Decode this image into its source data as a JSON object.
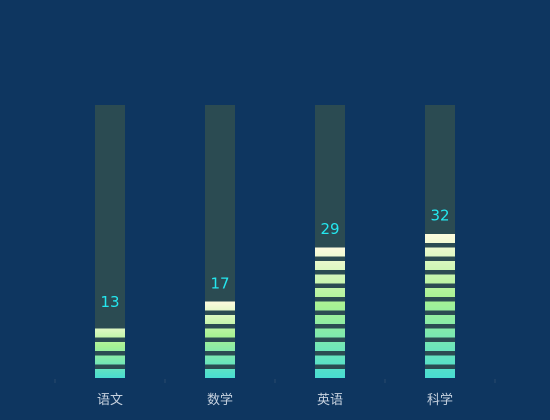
{
  "chart_data": {
    "type": "bar",
    "style": "pictorial segmented gauge bars",
    "categories": [
      "语文",
      "数学",
      "英语",
      "科学"
    ],
    "values": [
      13,
      17,
      29,
      32
    ],
    "ylim": [
      0,
      60
    ],
    "grid": false,
    "legend": "none",
    "colors": {
      "background": "#0e3660",
      "track": "#2b4b52",
      "gradient_top": "#fffbe0",
      "gradient_mid": "#a8f293",
      "gradient_bottom": "#48ddd2",
      "value_label": "#24e7ef",
      "category_label": "#c7d2df",
      "axis_tick": "#294a6c"
    }
  }
}
